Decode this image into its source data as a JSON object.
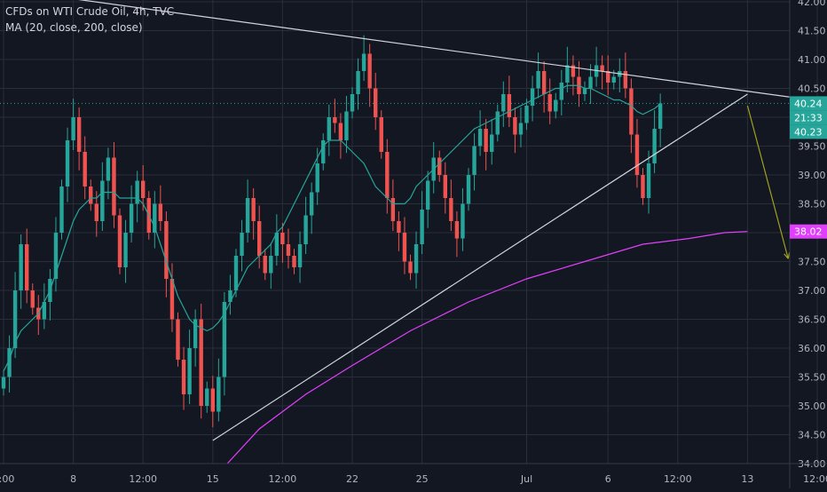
{
  "legend": {
    "symbol": "CFDs on WTI Crude Oil, 4h, TVC",
    "ma_fast": "MA (20, close, 200, close)"
  },
  "colors": {
    "background": "#131722",
    "grid": "#2a2e39",
    "up": "#26a69a",
    "down": "#ef5350",
    "ma20": "#26a69a",
    "ma200": "#e040fb",
    "trendline": "#d1d4dc",
    "arrow": "#a0a020",
    "price_tag": "#26a69a",
    "ma200_tag": "#e040fb"
  },
  "price_tags": {
    "last": "40.24",
    "countdown": "21:33",
    "ma20": "40.23",
    "ma200": "38.02"
  },
  "chart_data": {
    "type": "candlestick",
    "title": "CFDs on WTI Crude Oil, 4h, TVC",
    "x_ticks": [
      "2:00",
      "8",
      "12:00",
      "15",
      "12:00",
      "22",
      "25",
      "Jul",
      "6",
      "12:00",
      "13",
      "12:00"
    ],
    "x_tick_index": [
      0,
      12,
      24,
      36,
      48,
      60,
      72,
      90,
      104,
      116,
      128,
      140
    ],
    "y_ticks": [
      "34.00",
      "34.50",
      "35.00",
      "35.50",
      "36.00",
      "36.50",
      "37.00",
      "37.50",
      "38.00",
      "38.50",
      "39.00",
      "39.50",
      "40.00",
      "40.50",
      "41.00",
      "41.50",
      "42.00"
    ],
    "ylim": [
      34.0,
      42.0
    ],
    "last_price": 40.24,
    "ma20_last": 40.23,
    "ma200_last": 38.02,
    "close": [
      35.5,
      36.0,
      37.0,
      37.8,
      37.0,
      36.7,
      36.5,
      36.8,
      37.2,
      38.0,
      38.8,
      39.6,
      40.0,
      39.4,
      38.8,
      38.5,
      38.2,
      38.9,
      39.3,
      38.3,
      37.4,
      38.0,
      38.5,
      38.9,
      38.6,
      38.0,
      38.5,
      38.2,
      37.2,
      36.5,
      35.8,
      35.2,
      36.0,
      36.5,
      35.0,
      35.3,
      34.9,
      35.5,
      36.8,
      37.0,
      37.6,
      38.0,
      38.6,
      38.2,
      37.6,
      37.3,
      37.6,
      38.0,
      37.8,
      37.6,
      37.4,
      37.8,
      38.3,
      38.7,
      39.2,
      39.6,
      40.0,
      39.9,
      39.6,
      40.1,
      40.4,
      40.8,
      41.1,
      40.5,
      40.0,
      39.4,
      38.6,
      38.2,
      38.0,
      37.5,
      37.3,
      37.8,
      38.4,
      38.9,
      39.3,
      39.0,
      38.6,
      38.2,
      37.9,
      38.5,
      39.0,
      39.5,
      39.8,
      39.4,
      39.7,
      40.1,
      40.4,
      40.0,
      39.7,
      39.9,
      40.2,
      40.5,
      40.8,
      40.4,
      40.1,
      40.3,
      40.6,
      40.9,
      40.7,
      40.4,
      40.5,
      40.7,
      40.9,
      40.8,
      40.6,
      40.7,
      40.8,
      40.5,
      39.7,
      39.0,
      38.6,
      39.2,
      39.8,
      40.24
    ],
    "ma20": [
      35.6,
      35.8,
      36.1,
      36.3,
      36.4,
      36.5,
      36.6,
      36.8,
      37.0,
      37.3,
      37.6,
      37.9,
      38.2,
      38.4,
      38.5,
      38.6,
      38.6,
      38.7,
      38.7,
      38.7,
      38.6,
      38.6,
      38.6,
      38.6,
      38.5,
      38.3,
      38.1,
      37.8,
      37.5,
      37.2,
      36.9,
      36.7,
      36.5,
      36.4,
      36.35,
      36.3,
      36.35,
      36.45,
      36.6,
      36.8,
      37.0,
      37.2,
      37.4,
      37.5,
      37.6,
      37.7,
      37.8,
      38.0,
      38.1,
      38.3,
      38.5,
      38.7,
      38.9,
      39.1,
      39.3,
      39.5,
      39.6,
      39.6,
      39.6,
      39.5,
      39.4,
      39.3,
      39.2,
      39.0,
      38.8,
      38.7,
      38.6,
      38.5,
      38.5,
      38.5,
      38.6,
      38.8,
      38.9,
      39.0,
      39.1,
      39.2,
      39.3,
      39.4,
      39.5,
      39.6,
      39.7,
      39.8,
      39.85,
      39.9,
      39.95,
      40.0,
      40.05,
      40.1,
      40.15,
      40.2,
      40.25,
      40.3,
      40.35,
      40.4,
      40.45,
      40.5,
      40.5,
      40.55,
      40.55,
      40.55,
      40.5,
      40.5,
      40.45,
      40.4,
      40.35,
      40.3,
      40.3,
      40.25,
      40.2,
      40.1,
      40.05,
      40.1,
      40.15,
      40.23
    ],
    "ma200": [
      [
        38.5,
        34.0
      ],
      [
        44,
        34.6
      ],
      [
        52,
        35.2
      ],
      [
        60,
        35.7
      ],
      [
        70,
        36.3
      ],
      [
        80,
        36.8
      ],
      [
        90,
        37.2
      ],
      [
        100,
        37.5
      ],
      [
        110,
        37.8
      ],
      [
        118,
        37.9
      ],
      [
        124,
        38.0
      ],
      [
        128,
        38.02
      ]
    ],
    "trendlines": [
      {
        "name": "upper-resistance",
        "from": [
          -6,
          42.3
        ],
        "to": [
          148,
          40.35
        ]
      },
      {
        "name": "lower-support",
        "from": [
          36,
          34.4
        ],
        "to": [
          128,
          40.4
        ]
      }
    ],
    "projection_arrow": {
      "from": [
        128,
        40.2
      ],
      "to": [
        135,
        37.55
      ]
    }
  }
}
